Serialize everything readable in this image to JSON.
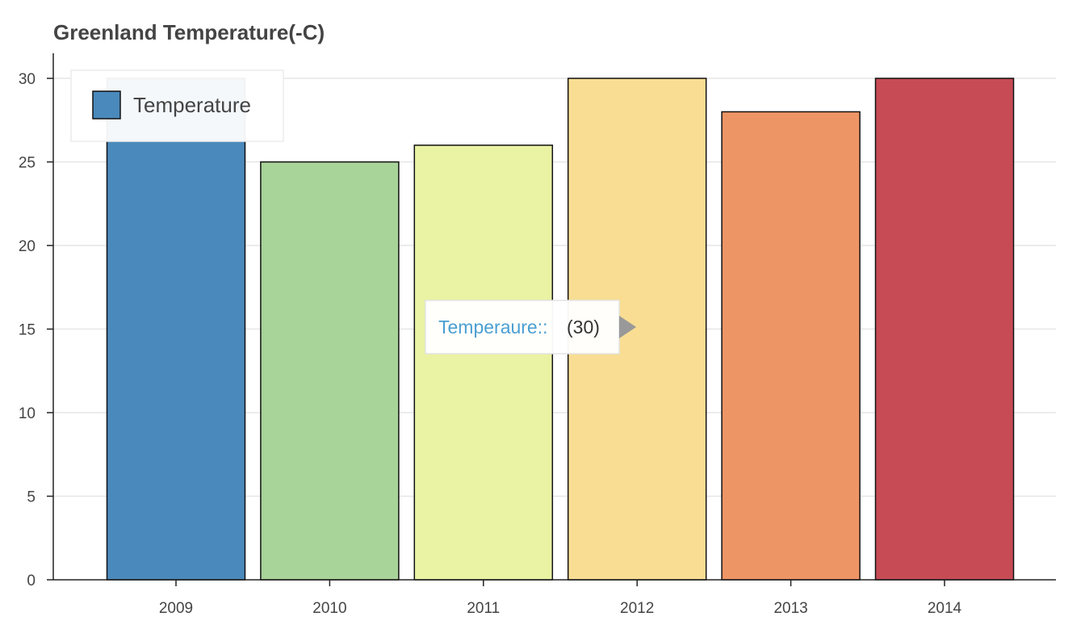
{
  "chart_data": {
    "type": "bar",
    "title": "Greenland Temperature(-C)",
    "categories": [
      "2009",
      "2010",
      "2011",
      "2012",
      "2013",
      "2014"
    ],
    "series": [
      {
        "name": "Temperature",
        "values": [
          30,
          25,
          26,
          30,
          28,
          30
        ]
      }
    ],
    "bar_colors": [
      "#4a89bb",
      "#a8d399",
      "#eaf2a3",
      "#f8dd93",
      "#ee9566",
      "#c74b55"
    ],
    "legend_swatch_color": "#4a89bb",
    "ylim": [
      0,
      31.5
    ],
    "yticks": [
      0,
      5,
      10,
      15,
      20,
      25,
      30
    ],
    "grid": true,
    "legend_position": "top-left",
    "tooltip": {
      "key": "Temperaure::",
      "value": "(30)"
    }
  }
}
